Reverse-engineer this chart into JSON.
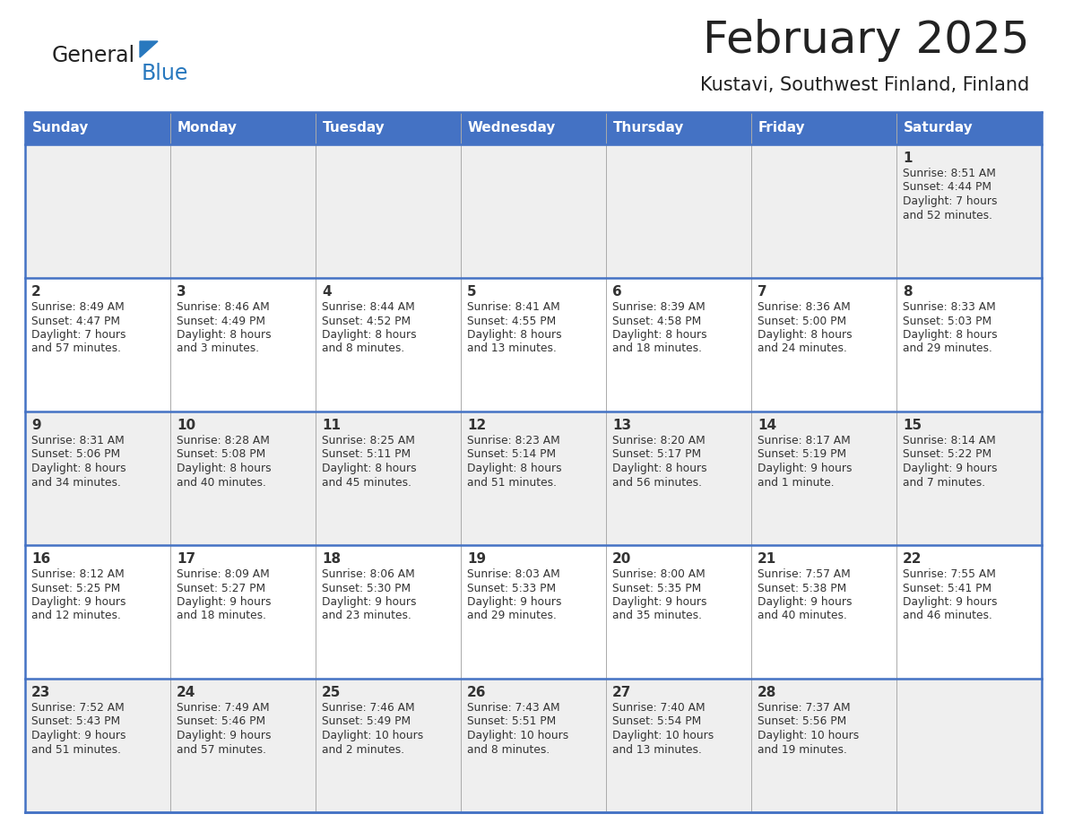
{
  "title": "February 2025",
  "subtitle": "Kustavi, Southwest Finland, Finland",
  "days_of_week": [
    "Sunday",
    "Monday",
    "Tuesday",
    "Wednesday",
    "Thursday",
    "Friday",
    "Saturday"
  ],
  "header_bg": "#4472C4",
  "header_text": "#FFFFFF",
  "row_bg_colors": [
    "#EFEFEF",
    "#FFFFFF",
    "#EFEFEF",
    "#FFFFFF",
    "#EFEFEF"
  ],
  "border_color": "#4472C4",
  "sep_color": "#AAAAAA",
  "text_color": "#333333",
  "title_color": "#222222",
  "logo_general_color": "#222222",
  "logo_blue_color": "#2878BE",
  "logo_triangle_color": "#2878BE",
  "calendar_data": [
    [
      null,
      null,
      null,
      null,
      null,
      null,
      {
        "day": 1,
        "sunrise": "8:51 AM",
        "sunset": "4:44 PM",
        "daylight": "7 hours",
        "daylight2": "and 52 minutes."
      }
    ],
    [
      {
        "day": 2,
        "sunrise": "8:49 AM",
        "sunset": "4:47 PM",
        "daylight": "7 hours",
        "daylight2": "and 57 minutes."
      },
      {
        "day": 3,
        "sunrise": "8:46 AM",
        "sunset": "4:49 PM",
        "daylight": "8 hours",
        "daylight2": "and 3 minutes."
      },
      {
        "day": 4,
        "sunrise": "8:44 AM",
        "sunset": "4:52 PM",
        "daylight": "8 hours",
        "daylight2": "and 8 minutes."
      },
      {
        "day": 5,
        "sunrise": "8:41 AM",
        "sunset": "4:55 PM",
        "daylight": "8 hours",
        "daylight2": "and 13 minutes."
      },
      {
        "day": 6,
        "sunrise": "8:39 AM",
        "sunset": "4:58 PM",
        "daylight": "8 hours",
        "daylight2": "and 18 minutes."
      },
      {
        "day": 7,
        "sunrise": "8:36 AM",
        "sunset": "5:00 PM",
        "daylight": "8 hours",
        "daylight2": "and 24 minutes."
      },
      {
        "day": 8,
        "sunrise": "8:33 AM",
        "sunset": "5:03 PM",
        "daylight": "8 hours",
        "daylight2": "and 29 minutes."
      }
    ],
    [
      {
        "day": 9,
        "sunrise": "8:31 AM",
        "sunset": "5:06 PM",
        "daylight": "8 hours",
        "daylight2": "and 34 minutes."
      },
      {
        "day": 10,
        "sunrise": "8:28 AM",
        "sunset": "5:08 PM",
        "daylight": "8 hours",
        "daylight2": "and 40 minutes."
      },
      {
        "day": 11,
        "sunrise": "8:25 AM",
        "sunset": "5:11 PM",
        "daylight": "8 hours",
        "daylight2": "and 45 minutes."
      },
      {
        "day": 12,
        "sunrise": "8:23 AM",
        "sunset": "5:14 PM",
        "daylight": "8 hours",
        "daylight2": "and 51 minutes."
      },
      {
        "day": 13,
        "sunrise": "8:20 AM",
        "sunset": "5:17 PM",
        "daylight": "8 hours",
        "daylight2": "and 56 minutes."
      },
      {
        "day": 14,
        "sunrise": "8:17 AM",
        "sunset": "5:19 PM",
        "daylight": "9 hours",
        "daylight2": "and 1 minute."
      },
      {
        "day": 15,
        "sunrise": "8:14 AM",
        "sunset": "5:22 PM",
        "daylight": "9 hours",
        "daylight2": "and 7 minutes."
      }
    ],
    [
      {
        "day": 16,
        "sunrise": "8:12 AM",
        "sunset": "5:25 PM",
        "daylight": "9 hours",
        "daylight2": "and 12 minutes."
      },
      {
        "day": 17,
        "sunrise": "8:09 AM",
        "sunset": "5:27 PM",
        "daylight": "9 hours",
        "daylight2": "and 18 minutes."
      },
      {
        "day": 18,
        "sunrise": "8:06 AM",
        "sunset": "5:30 PM",
        "daylight": "9 hours",
        "daylight2": "and 23 minutes."
      },
      {
        "day": 19,
        "sunrise": "8:03 AM",
        "sunset": "5:33 PM",
        "daylight": "9 hours",
        "daylight2": "and 29 minutes."
      },
      {
        "day": 20,
        "sunrise": "8:00 AM",
        "sunset": "5:35 PM",
        "daylight": "9 hours",
        "daylight2": "and 35 minutes."
      },
      {
        "day": 21,
        "sunrise": "7:57 AM",
        "sunset": "5:38 PM",
        "daylight": "9 hours",
        "daylight2": "and 40 minutes."
      },
      {
        "day": 22,
        "sunrise": "7:55 AM",
        "sunset": "5:41 PM",
        "daylight": "9 hours",
        "daylight2": "and 46 minutes."
      }
    ],
    [
      {
        "day": 23,
        "sunrise": "7:52 AM",
        "sunset": "5:43 PM",
        "daylight": "9 hours",
        "daylight2": "and 51 minutes."
      },
      {
        "day": 24,
        "sunrise": "7:49 AM",
        "sunset": "5:46 PM",
        "daylight": "9 hours",
        "daylight2": "and 57 minutes."
      },
      {
        "day": 25,
        "sunrise": "7:46 AM",
        "sunset": "5:49 PM",
        "daylight": "10 hours",
        "daylight2": "and 2 minutes."
      },
      {
        "day": 26,
        "sunrise": "7:43 AM",
        "sunset": "5:51 PM",
        "daylight": "10 hours",
        "daylight2": "and 8 minutes."
      },
      {
        "day": 27,
        "sunrise": "7:40 AM",
        "sunset": "5:54 PM",
        "daylight": "10 hours",
        "daylight2": "and 13 minutes."
      },
      {
        "day": 28,
        "sunrise": "7:37 AM",
        "sunset": "5:56 PM",
        "daylight": "10 hours",
        "daylight2": "and 19 minutes."
      },
      null
    ]
  ]
}
